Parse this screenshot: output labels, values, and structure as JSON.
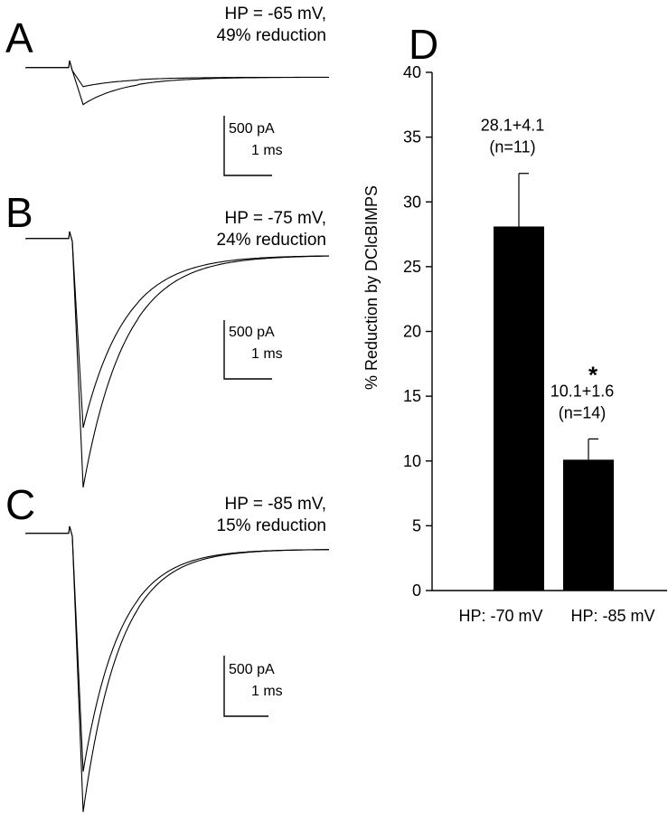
{
  "chart_data": [
    {
      "type": "line",
      "panel": "A",
      "annotation": [
        "HP = -65 mV,",
        "49% reduction"
      ],
      "scale_bar": {
        "current": "500 pA",
        "time": "1 ms"
      },
      "series": [
        {
          "peak_pA": -370,
          "decay_ms": 1.6
        },
        {
          "peak_pA": -190,
          "decay_ms": 1.6
        }
      ]
    },
    {
      "type": "line",
      "panel": "B",
      "annotation": [
        "HP = -75 mV,",
        "24% reduction"
      ],
      "scale_bar": {
        "current": "500 pA",
        "time": "1 ms"
      },
      "series": [
        {
          "peak_pA": -2500,
          "decay_ms": 1.6
        },
        {
          "peak_pA": -1900,
          "decay_ms": 1.6
        }
      ]
    },
    {
      "type": "line",
      "panel": "C",
      "annotation": [
        "HP = -85 mV,",
        "15% reduction"
      ],
      "scale_bar": {
        "current": "500 pA",
        "time": "1 ms"
      },
      "series": [
        {
          "peak_pA": -3800,
          "decay_ms": 1.4
        },
        {
          "peak_pA": -3250,
          "decay_ms": 1.4
        }
      ]
    },
    {
      "type": "bar",
      "panel": "D",
      "categories": [
        "HP: -70 mV",
        "HP: -85 mV"
      ],
      "values": [
        28.1,
        10.1
      ],
      "errors": [
        4.1,
        1.6
      ],
      "bar_labels": [
        [
          "28.1+4.1",
          "(n=11)"
        ],
        [
          "10.1+1.6",
          "(n=14)"
        ]
      ],
      "significance": [
        "",
        "*"
      ],
      "ylabel": "% Reduction by DClcBIMPS",
      "ylim": [
        0,
        40
      ],
      "yticks": [
        0,
        5,
        10,
        15,
        20,
        25,
        30,
        35,
        40
      ],
      "grid": false,
      "bar_color": "#000000"
    }
  ]
}
